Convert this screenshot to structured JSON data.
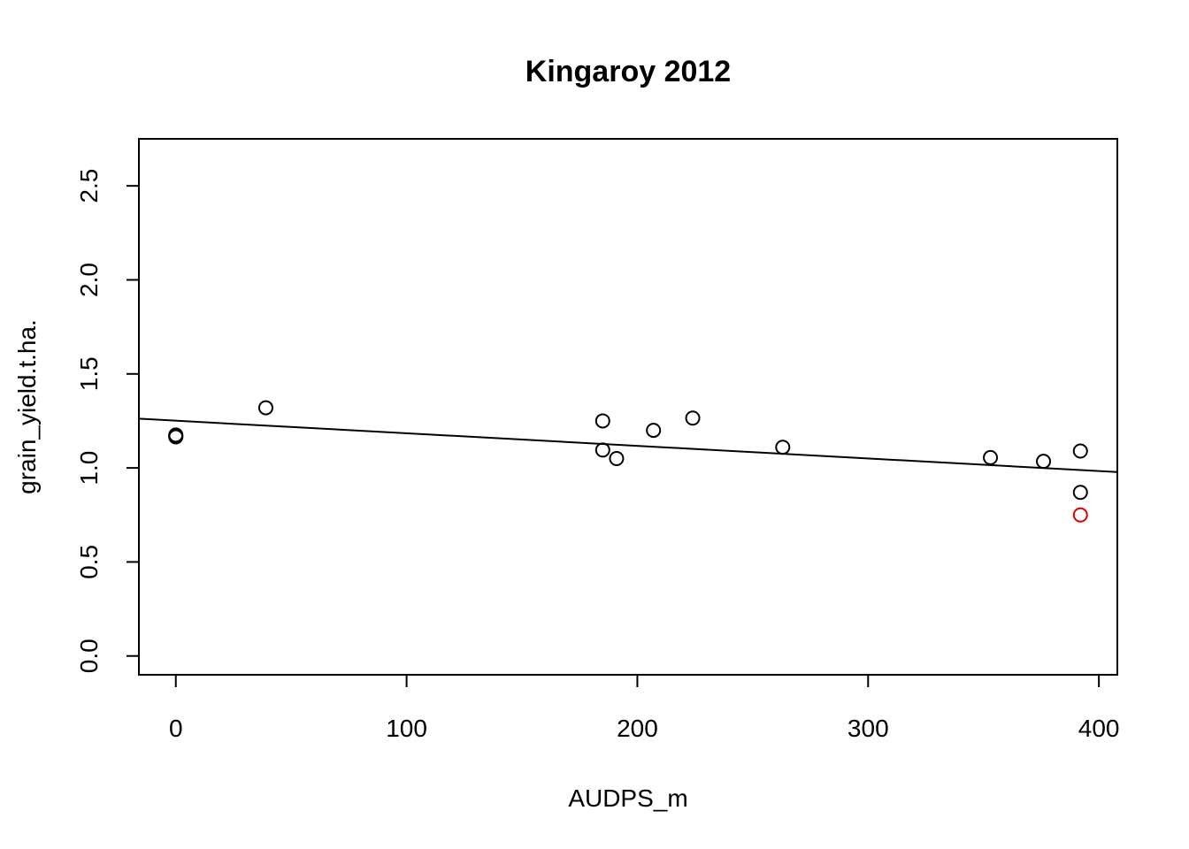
{
  "chart_data": {
    "type": "scatter",
    "title": "Kingaroy 2012",
    "xlabel": "AUDPS_m",
    "ylabel": "grain_yield.t.ha.",
    "xlim": [
      -16,
      408
    ],
    "ylim": [
      -0.1,
      2.75
    ],
    "x_ticks": [
      0,
      100,
      200,
      300,
      400
    ],
    "y_ticks": [
      0.0,
      0.5,
      1.0,
      1.5,
      2.0,
      2.5
    ],
    "x_tick_labels": [
      "0",
      "100",
      "200",
      "300",
      "400"
    ],
    "y_tick_labels": [
      "0.0",
      "0.5",
      "1.0",
      "1.5",
      "2.0",
      "2.5"
    ],
    "grid": false,
    "legend": "none",
    "marker": "open-circle",
    "point_color": "#000000",
    "highlight_color": "#e00000",
    "points": [
      {
        "x": 0,
        "y": 1.17
      },
      {
        "x": 0,
        "y": 1.175
      },
      {
        "x": 0,
        "y": 1.165
      },
      {
        "x": 39,
        "y": 1.32
      },
      {
        "x": 185,
        "y": 1.25
      },
      {
        "x": 185,
        "y": 1.095
      },
      {
        "x": 191,
        "y": 1.05
      },
      {
        "x": 207,
        "y": 1.2
      },
      {
        "x": 224,
        "y": 1.265
      },
      {
        "x": 263,
        "y": 1.11
      },
      {
        "x": 353,
        "y": 1.055
      },
      {
        "x": 376,
        "y": 1.035
      },
      {
        "x": 392,
        "y": 1.09
      },
      {
        "x": 392,
        "y": 0.87
      },
      {
        "x": 392,
        "y": 0.75,
        "highlight": true
      }
    ],
    "fit_line": {
      "x": [
        -16,
        408
      ],
      "y": [
        1.262,
        0.978
      ]
    }
  }
}
